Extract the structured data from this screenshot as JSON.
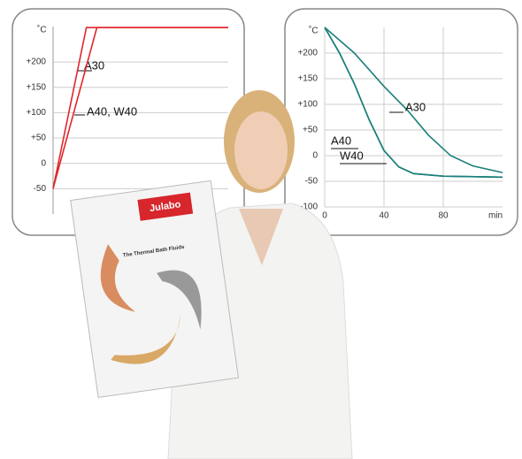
{
  "chart_data": [
    {
      "type": "line",
      "y_label": "˚C",
      "xlim": [
        0,
        100
      ],
      "ylim": [
        -100,
        270
      ],
      "yticks": [
        {
          "value": 200,
          "label": "+200"
        },
        {
          "value": 150,
          "label": "+150"
        },
        {
          "value": 100,
          "label": "+100"
        },
        {
          "value": 50,
          "label": "+50"
        },
        0,
        -50
      ],
      "grid": true,
      "series": [
        {
          "name": "A30",
          "color": "#e0262b",
          "x": [
            0,
            19,
            100
          ],
          "values": [
            -50,
            268,
            268
          ]
        },
        {
          "name": "A40, W40",
          "color": "#e0262b",
          "x": [
            0,
            25,
            100
          ],
          "values": [
            -50,
            268,
            268
          ]
        }
      ]
    },
    {
      "type": "line",
      "y_label": "˚C",
      "x_label": "min",
      "xlim": [
        0,
        120
      ],
      "ylim": [
        -100,
        250
      ],
      "xticks": [
        0,
        40,
        80
      ],
      "yticks": [
        {
          "value": 200,
          "label": "+200"
        },
        {
          "value": 150,
          "label": "+150"
        },
        {
          "value": 100,
          "label": "+100"
        },
        {
          "value": 50,
          "label": "+50"
        },
        0,
        -50,
        -100
      ],
      "grid": true,
      "series": [
        {
          "name": "A30",
          "color": "#1a7f7a",
          "x": [
            0,
            20,
            40,
            56,
            70,
            85,
            100,
            120
          ],
          "values": [
            250,
            200,
            135,
            88,
            40,
            0,
            -20,
            -33
          ]
        },
        {
          "name": "A40",
          "color": "#1a7f7a",
          "x": [
            0,
            10,
            20,
            30,
            40,
            50,
            60,
            80,
            120
          ],
          "values": [
            250,
            200,
            140,
            70,
            10,
            -22,
            -35,
            -40,
            -42
          ]
        },
        {
          "name": "W40",
          "color": "#1a7f7a",
          "x": [
            0,
            10,
            20,
            30,
            40,
            50,
            60,
            80,
            120
          ],
          "values": [
            250,
            200,
            140,
            70,
            10,
            -22,
            -35,
            -40,
            -42
          ]
        }
      ]
    }
  ],
  "brochure": {
    "logo": "Julabo",
    "title": "The Thermal Bath Fluids"
  }
}
